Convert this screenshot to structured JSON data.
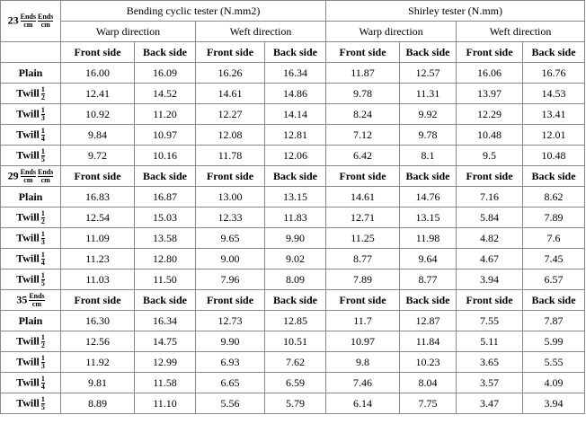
{
  "table": {
    "group_headers": [
      "Bending cyclic tester (N.mm2)",
      "Shirley tester (N.mm)"
    ],
    "direction_headers": [
      "Warp direction",
      "Weft direction"
    ],
    "side_headers": [
      "Front side",
      "Back side"
    ],
    "sections": [
      {
        "number": "23",
        "fractions": [
          [
            "Ends",
            "cm"
          ],
          [
            "Ends",
            "cm"
          ]
        ],
        "rows": [
          {
            "name": "Plain",
            "fraction": null,
            "values": [
              "16.00",
              "16.09",
              "16.26",
              "16.34",
              "11.87",
              "12.57",
              "16.06",
              "16.76"
            ]
          },
          {
            "name": "Twill",
            "fraction": [
              "1",
              "2"
            ],
            "values": [
              "12.41",
              "14.52",
              "14.61",
              "14.86",
              "9.78",
              "11.31",
              "13.97",
              "14.53"
            ]
          },
          {
            "name": "Twill",
            "fraction": [
              "1",
              "3"
            ],
            "values": [
              "10.92",
              "11.20",
              "12.27",
              "14.14",
              "8.24",
              "9.92",
              "12.29",
              "13.41"
            ]
          },
          {
            "name": "Twill",
            "fraction": [
              "1",
              "4"
            ],
            "values": [
              "9.84",
              "10.97",
              "12.08",
              "12.81",
              "7.12",
              "9.78",
              "10.48",
              "12.01"
            ]
          },
          {
            "name": "Twill",
            "fraction": [
              "1",
              "5"
            ],
            "values": [
              "9.72",
              "10.16",
              "11.78",
              "12.06",
              "6.42",
              "8.1",
              "9.5",
              "10.48"
            ]
          }
        ]
      },
      {
        "number": "29",
        "fractions": [
          [
            "Ends",
            "cm"
          ],
          [
            "Ends",
            "cm"
          ]
        ],
        "rows": [
          {
            "name": "Plain",
            "fraction": null,
            "values": [
              "16.83",
              "16.87",
              "13.00",
              "13.15",
              "14.61",
              "14.76",
              "7.16",
              "8.62"
            ]
          },
          {
            "name": "Twill",
            "fraction": [
              "1",
              "2"
            ],
            "values": [
              "12.54",
              "15.03",
              "12.33",
              "11.83",
              "12.71",
              "13.15",
              "5.84",
              "7.89"
            ]
          },
          {
            "name": "Twill",
            "fraction": [
              "1",
              "3"
            ],
            "values": [
              "11.09",
              "13.58",
              "9.65",
              "9.90",
              "11.25",
              "11.98",
              "4.82",
              "7.6"
            ]
          },
          {
            "name": "Twill",
            "fraction": [
              "1",
              "4"
            ],
            "values": [
              "11.23",
              "12.80",
              "9.00",
              "9.02",
              "8.77",
              "9.64",
              "4.67",
              "7.45"
            ]
          },
          {
            "name": "Twill",
            "fraction": [
              "1",
              "5"
            ],
            "values": [
              "11.03",
              "11.50",
              "7.96",
              "8.09",
              "7.89",
              "8.77",
              "3.94",
              "6.57"
            ]
          }
        ]
      },
      {
        "number": "35",
        "fractions": [
          [
            "Ends",
            "cm"
          ]
        ],
        "rows": [
          {
            "name": "Plain",
            "fraction": null,
            "values": [
              "16.30",
              "16.34",
              "12.73",
              "12.85",
              "11.7",
              "12.87",
              "7.55",
              "7.87"
            ]
          },
          {
            "name": "Twill",
            "fraction": [
              "1",
              "2"
            ],
            "values": [
              "12.56",
              "14.75",
              "9.90",
              "10.51",
              "10.97",
              "11.84",
              "5.11",
              "5.99"
            ]
          },
          {
            "name": "Twill",
            "fraction": [
              "1",
              "3"
            ],
            "values": [
              "11.92",
              "12.99",
              "6.93",
              "7.62",
              "9.8",
              "10.23",
              "3.65",
              "5.55"
            ]
          },
          {
            "name": "Twill",
            "fraction": [
              "1",
              "4"
            ],
            "values": [
              "9.81",
              "11.58",
              "6.65",
              "6.59",
              "7.46",
              "8.04",
              "3.57",
              "4.09"
            ]
          },
          {
            "name": "Twill",
            "fraction": [
              "1",
              "5"
            ],
            "values": [
              "8.89",
              "11.10",
              "5.56",
              "5.79",
              "6.14",
              "7.75",
              "3.47",
              "3.94"
            ]
          }
        ]
      }
    ]
  }
}
